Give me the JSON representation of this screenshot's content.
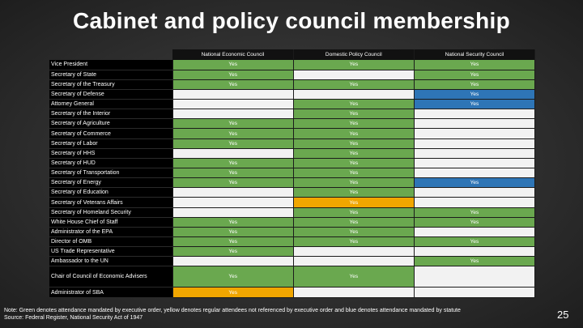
{
  "title": "Cabinet and policy council membership",
  "colors": {
    "green": "#6aa84f",
    "yellow": "#f1a600",
    "blue": "#2e75b6",
    "empty": "#f2f2f2"
  },
  "columns": [
    "National Economic Council",
    "Domestic Policy Council",
    "National Security Council"
  ],
  "rows": [
    {
      "label": "Vice President",
      "cells": [
        {
          "t": "Yes",
          "c": "g"
        },
        {
          "t": "Yes",
          "c": "g"
        },
        {
          "t": "Yes",
          "c": "g"
        }
      ]
    },
    {
      "label": "Secretary of State",
      "cells": [
        {
          "t": "Yes",
          "c": "g"
        },
        {
          "t": "",
          "c": ""
        },
        {
          "t": "Yes",
          "c": "g"
        }
      ]
    },
    {
      "label": "Secretary of the Treasury",
      "cells": [
        {
          "t": "Yes",
          "c": "g"
        },
        {
          "t": "Yes",
          "c": "g"
        },
        {
          "t": "Yes",
          "c": "g"
        }
      ]
    },
    {
      "label": "Secretary of Defense",
      "cells": [
        {
          "t": "",
          "c": ""
        },
        {
          "t": "",
          "c": ""
        },
        {
          "t": "Yes",
          "c": "b"
        }
      ]
    },
    {
      "label": "Attorney General",
      "cells": [
        {
          "t": "",
          "c": ""
        },
        {
          "t": "Yes",
          "c": "g"
        },
        {
          "t": "Yes",
          "c": "b"
        }
      ]
    },
    {
      "label": "Secretary of the Interior",
      "cells": [
        {
          "t": "",
          "c": ""
        },
        {
          "t": "Yes",
          "c": "g"
        },
        {
          "t": "",
          "c": ""
        }
      ]
    },
    {
      "label": "Secretary of Agriculture",
      "cells": [
        {
          "t": "Yes",
          "c": "g"
        },
        {
          "t": "Yes",
          "c": "g"
        },
        {
          "t": "",
          "c": ""
        }
      ]
    },
    {
      "label": "Secretary of Commerce",
      "cells": [
        {
          "t": "Yes",
          "c": "g"
        },
        {
          "t": "Yes",
          "c": "g"
        },
        {
          "t": "",
          "c": ""
        }
      ]
    },
    {
      "label": "Secretary of Labor",
      "cells": [
        {
          "t": "Yes",
          "c": "g"
        },
        {
          "t": "Yes",
          "c": "g"
        },
        {
          "t": "",
          "c": ""
        }
      ]
    },
    {
      "label": "Secretary of HHS",
      "cells": [
        {
          "t": "",
          "c": ""
        },
        {
          "t": "Yes",
          "c": "g"
        },
        {
          "t": "",
          "c": ""
        }
      ]
    },
    {
      "label": "Secretary of HUD",
      "cells": [
        {
          "t": "Yes",
          "c": "g"
        },
        {
          "t": "Yes",
          "c": "g"
        },
        {
          "t": "",
          "c": ""
        }
      ]
    },
    {
      "label": "Secretary of Transportation",
      "cells": [
        {
          "t": "Yes",
          "c": "g"
        },
        {
          "t": "Yes",
          "c": "g"
        },
        {
          "t": "",
          "c": ""
        }
      ]
    },
    {
      "label": "Secretary of Energy",
      "cells": [
        {
          "t": "Yes",
          "c": "g"
        },
        {
          "t": "Yes",
          "c": "g"
        },
        {
          "t": "Yes",
          "c": "b"
        }
      ]
    },
    {
      "label": "Secretary of Education",
      "cells": [
        {
          "t": "",
          "c": ""
        },
        {
          "t": "Yes",
          "c": "g"
        },
        {
          "t": "",
          "c": ""
        }
      ]
    },
    {
      "label": "Secretary of Veterans Affairs",
      "cells": [
        {
          "t": "",
          "c": ""
        },
        {
          "t": "Yes",
          "c": "y"
        },
        {
          "t": "",
          "c": ""
        }
      ]
    },
    {
      "label": "Secretary of Homeland Security",
      "cells": [
        {
          "t": "",
          "c": ""
        },
        {
          "t": "Yes",
          "c": "g"
        },
        {
          "t": "Yes",
          "c": "g"
        }
      ]
    },
    {
      "label": "White House Chief of Staff",
      "cells": [
        {
          "t": "Yes",
          "c": "g"
        },
        {
          "t": "Yes",
          "c": "g"
        },
        {
          "t": "Yes",
          "c": "g"
        }
      ]
    },
    {
      "label": "Administrator of the EPA",
      "cells": [
        {
          "t": "Yes",
          "c": "g"
        },
        {
          "t": "Yes",
          "c": "g"
        },
        {
          "t": "",
          "c": ""
        }
      ]
    },
    {
      "label": "Director of OMB",
      "cells": [
        {
          "t": "Yes",
          "c": "g"
        },
        {
          "t": "Yes",
          "c": "g"
        },
        {
          "t": "Yes",
          "c": "g"
        }
      ]
    },
    {
      "label": "US Trade Representative",
      "cells": [
        {
          "t": "Yes",
          "c": "g"
        },
        {
          "t": "",
          "c": ""
        },
        {
          "t": "",
          "c": ""
        }
      ]
    },
    {
      "label": "Ambassador to the UN",
      "cells": [
        {
          "t": "",
          "c": ""
        },
        {
          "t": "",
          "c": ""
        },
        {
          "t": "Yes",
          "c": "g"
        }
      ]
    },
    {
      "label": "Chair of Council of Economic Advisers",
      "tall": true,
      "cells": [
        {
          "t": "Yes",
          "c": "g"
        },
        {
          "t": "Yes",
          "c": "g"
        },
        {
          "t": "",
          "c": ""
        }
      ]
    },
    {
      "label": "Administrator of SBA",
      "cells": [
        {
          "t": "Yes",
          "c": "y"
        },
        {
          "t": "",
          "c": ""
        },
        {
          "t": "",
          "c": ""
        }
      ]
    }
  ],
  "note_line1": "Note: Green denotes attendance mandated by executive order, yellow denotes regular attendees not referenced by executive order and blue denotes attendance mandated by statute",
  "note_line2": "Source: Federal Register, National Security Act of 1947",
  "page_number": "25"
}
